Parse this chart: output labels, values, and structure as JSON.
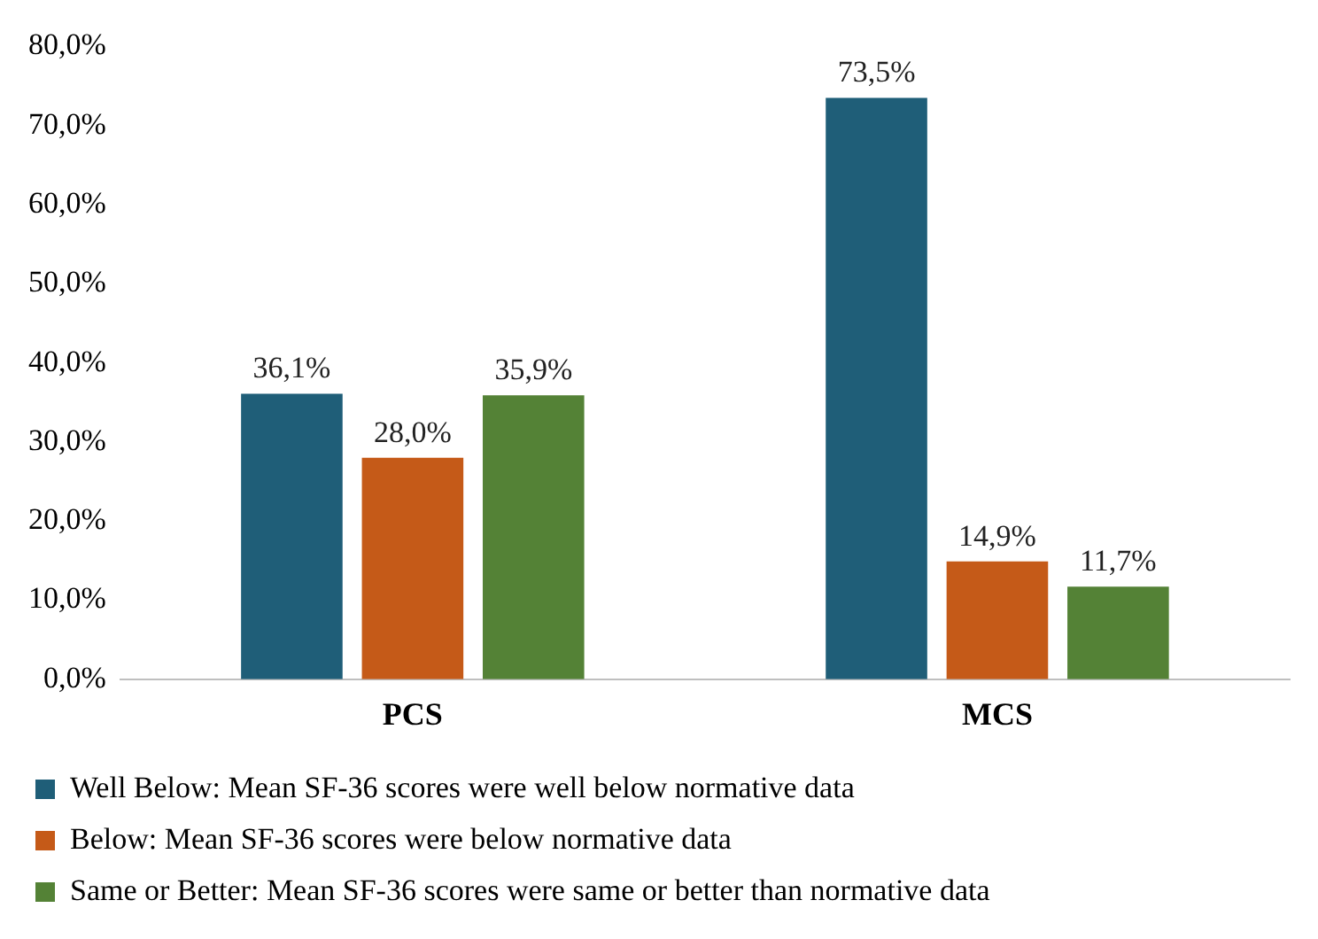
{
  "chart_data": {
    "type": "bar",
    "categories": [
      "PCS",
      "MCS"
    ],
    "series": [
      {
        "name": "Well Below: Mean SF-36 scores were well below normative data",
        "color": "#1f5e78",
        "values": [
          36.1,
          73.5
        ],
        "value_labels": [
          "36,1%",
          "73,5%"
        ]
      },
      {
        "name": "Below: Mean SF-36 scores were below normative data",
        "color": "#c55a18",
        "values": [
          28.0,
          14.9
        ],
        "value_labels": [
          "28,0%",
          "14,9%"
        ]
      },
      {
        "name": "Same or Better: Mean SF-36 scores were same or better than normative data",
        "color": "#548236",
        "values": [
          35.9,
          11.7
        ],
        "value_labels": [
          "35,9%",
          "11,7%"
        ]
      }
    ],
    "ylim": [
      0,
      80
    ],
    "yticks": [
      {
        "value": 0,
        "label": "0,0%"
      },
      {
        "value": 10,
        "label": "10,0%"
      },
      {
        "value": 20,
        "label": "20,0%"
      },
      {
        "value": 30,
        "label": "30,0%"
      },
      {
        "value": 40,
        "label": "40,0%"
      },
      {
        "value": 50,
        "label": "50,0%"
      },
      {
        "value": 60,
        "label": "60,0%"
      },
      {
        "value": 70,
        "label": "70,0%"
      },
      {
        "value": 80,
        "label": "80,0%"
      }
    ],
    "grid": false,
    "legend": "bottom"
  }
}
